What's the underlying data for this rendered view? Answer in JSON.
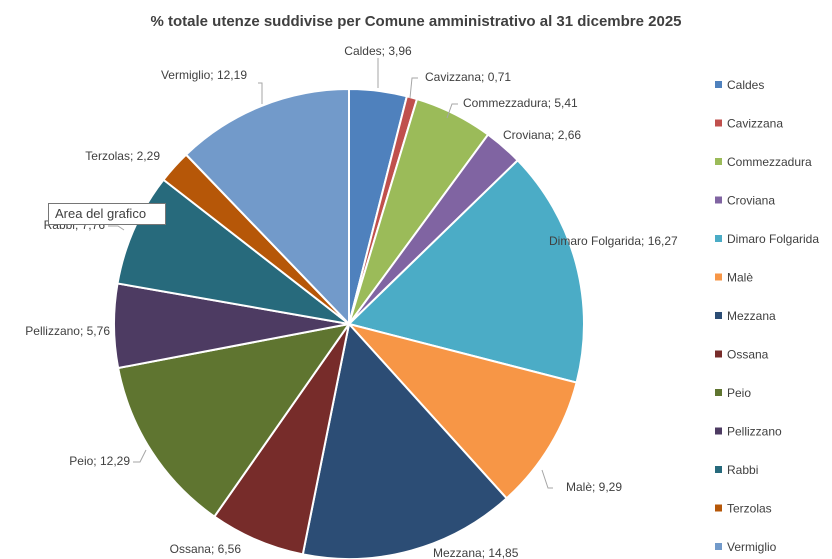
{
  "chart_data": {
    "type": "pie",
    "title": "% totale utenze suddivise per Comune amministrativo al 31 dicembre 2025",
    "legend_position": "right",
    "slices": [
      {
        "name": "Caldes",
        "value": 3.96,
        "label": "Caldes; 3,96",
        "color": "#4F81BD"
      },
      {
        "name": "Cavizzana",
        "value": 0.71,
        "label": "Cavizzana; 0,71",
        "color": "#C0504D"
      },
      {
        "name": "Commezzadura",
        "value": 5.41,
        "label": "Commezzadura; 5,41",
        "color": "#9BBB59"
      },
      {
        "name": "Croviana",
        "value": 2.66,
        "label": "Croviana; 2,66",
        "color": "#8064A2"
      },
      {
        "name": "Dimaro Folgarida",
        "value": 16.27,
        "label": "Dimaro Folgarida; 16,27",
        "color": "#4BACC6"
      },
      {
        "name": "Malè",
        "value": 9.29,
        "label": "Malè; 9,29",
        "color": "#F79646"
      },
      {
        "name": "Mezzana",
        "value": 14.85,
        "label": "Mezzana; 14,85",
        "color": "#2C4D75"
      },
      {
        "name": "Ossana",
        "value": 6.56,
        "label": "Ossana; 6,56",
        "color": "#772C2A"
      },
      {
        "name": "Peio",
        "value": 12.29,
        "label": "Peio; 12,29",
        "color": "#5F7530"
      },
      {
        "name": "Pellizzano",
        "value": 5.76,
        "label": "Pellizzano; 5,76",
        "color": "#4D3B62"
      },
      {
        "name": "Rabbi",
        "value": 7.76,
        "label": "Rabbi; 7,76",
        "color": "#276A7C"
      },
      {
        "name": "Terzolas",
        "value": 2.29,
        "label": "Terzolas; 2,29",
        "color": "#B65708"
      },
      {
        "name": "Vermiglio",
        "value": 12.19,
        "label": "Vermiglio; 12,19",
        "color": "#729ACA"
      }
    ]
  },
  "tooltip": {
    "text": "Area del grafico"
  }
}
